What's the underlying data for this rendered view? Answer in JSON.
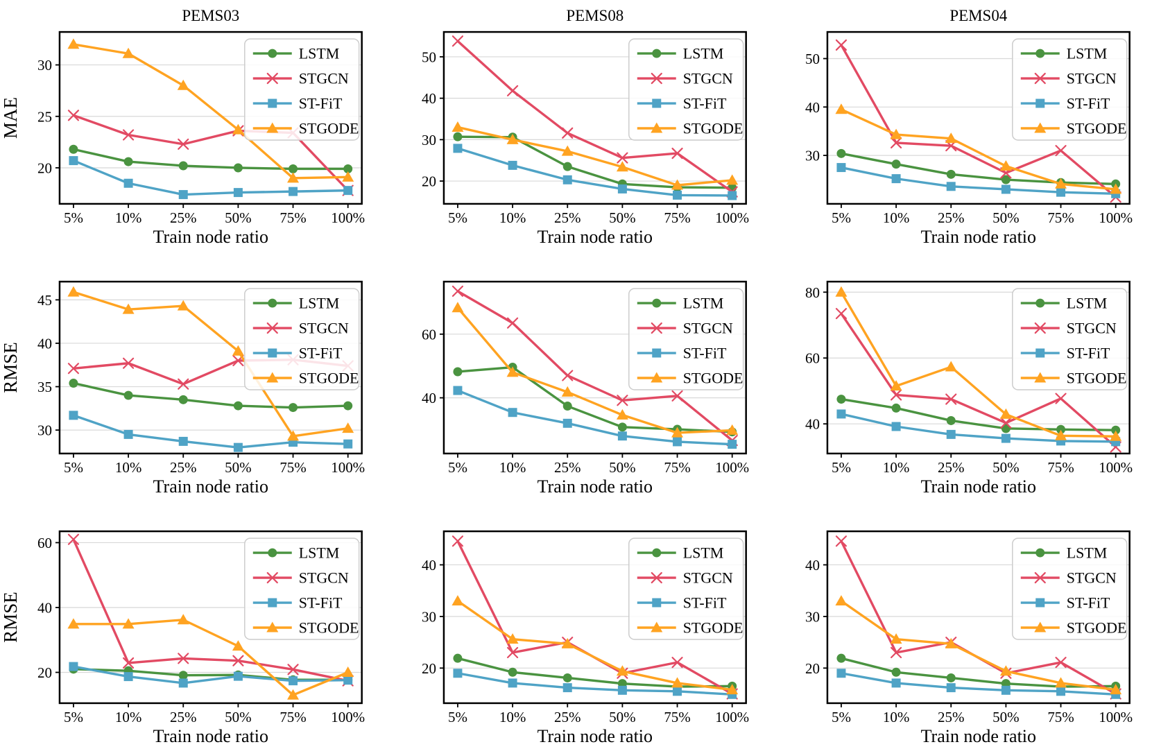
{
  "figure": {
    "background_color": "#ffffff",
    "grid_color": "#d8d8d8",
    "axis_color": "#000000",
    "legend_labels": [
      "LSTM",
      "STGCN",
      "ST-FiT",
      "STGODE"
    ],
    "legend_position": "upper right",
    "series_colors": {
      "LSTM": "#4a9340",
      "STGCN": "#e24a63",
      "ST-FiT": "#4fa3c6",
      "STGODE": "#ffa321"
    },
    "series_markers": {
      "LSTM": "circle",
      "STGCN": "x",
      "ST-FiT": "square",
      "STGODE": "triangle"
    }
  },
  "chart_data": [
    {
      "type": "line",
      "title": "PEMS03",
      "ylabel": "MAE",
      "xlabel": "Train node ratio",
      "categories": [
        "5%",
        "10%",
        "25%",
        "50%",
        "75%",
        "100%"
      ],
      "yticks": [
        20,
        25,
        30
      ],
      "ylim": [
        16.5,
        33.2
      ],
      "grid": true,
      "legend_position": "upper right",
      "series": [
        {
          "name": "LSTM",
          "color": "#4a9340",
          "marker": "circle",
          "values": [
            21.8,
            20.6,
            20.2,
            20.0,
            19.9,
            19.9
          ]
        },
        {
          "name": "STGCN",
          "color": "#e24a63",
          "marker": "x",
          "values": [
            25.1,
            23.2,
            22.3,
            23.6,
            23.4,
            17.8
          ]
        },
        {
          "name": "ST-FiT",
          "color": "#4fa3c6",
          "marker": "square",
          "values": [
            20.7,
            18.5,
            17.4,
            17.6,
            17.7,
            17.8
          ]
        },
        {
          "name": "STGODE",
          "color": "#ffa321",
          "marker": "triangle",
          "values": [
            32.0,
            31.1,
            28.0,
            23.7,
            19.0,
            19.1
          ]
        }
      ]
    },
    {
      "type": "line",
      "title": "PEMS08",
      "ylabel": "",
      "xlabel": "Train node ratio",
      "categories": [
        "5%",
        "10%",
        "25%",
        "50%",
        "75%",
        "100%"
      ],
      "yticks": [
        20,
        30,
        40,
        50
      ],
      "ylim": [
        14.5,
        56.0
      ],
      "grid": true,
      "legend_position": "upper right",
      "series": [
        {
          "name": "LSTM",
          "color": "#4a9340",
          "marker": "circle",
          "values": [
            30.7,
            30.6,
            23.5,
            19.3,
            18.5,
            18.4
          ]
        },
        {
          "name": "STGCN",
          "color": "#e24a63",
          "marker": "x",
          "values": [
            53.8,
            41.8,
            31.6,
            25.6,
            26.7,
            17.4
          ]
        },
        {
          "name": "ST-FiT",
          "color": "#4fa3c6",
          "marker": "square",
          "values": [
            27.9,
            23.8,
            20.3,
            18.1,
            16.6,
            16.5
          ]
        },
        {
          "name": "STGODE",
          "color": "#ffa321",
          "marker": "triangle",
          "values": [
            33.0,
            30.0,
            27.2,
            23.4,
            19.0,
            20.2
          ]
        }
      ]
    },
    {
      "type": "line",
      "title": "PEMS04",
      "ylabel": "",
      "xlabel": "Train node ratio",
      "categories": [
        "5%",
        "10%",
        "25%",
        "50%",
        "75%",
        "100%"
      ],
      "yticks": [
        30,
        40,
        50
      ],
      "ylim": [
        20.0,
        55.5
      ],
      "grid": true,
      "legend_position": "upper right",
      "series": [
        {
          "name": "LSTM",
          "color": "#4a9340",
          "marker": "circle",
          "values": [
            30.4,
            28.2,
            26.1,
            25.0,
            24.4,
            24.1
          ]
        },
        {
          "name": "STGCN",
          "color": "#e24a63",
          "marker": "x",
          "values": [
            52.8,
            32.6,
            32.0,
            26.4,
            31.0,
            21.4
          ]
        },
        {
          "name": "ST-FiT",
          "color": "#4fa3c6",
          "marker": "square",
          "values": [
            27.5,
            25.2,
            23.6,
            23.0,
            22.4,
            22.1
          ]
        },
        {
          "name": "STGODE",
          "color": "#ffa321",
          "marker": "triangle",
          "values": [
            39.5,
            34.3,
            33.5,
            27.8,
            24.1,
            23.0
          ]
        }
      ]
    },
    {
      "type": "line",
      "title": "",
      "ylabel": "RMSE",
      "xlabel": "Train node ratio",
      "categories": [
        "5%",
        "10%",
        "25%",
        "50%",
        "75%",
        "100%"
      ],
      "yticks": [
        30,
        35,
        40,
        45
      ],
      "ylim": [
        27.3,
        47.1
      ],
      "grid": true,
      "legend_position": "upper right",
      "series": [
        {
          "name": "LSTM",
          "color": "#4a9340",
          "marker": "circle",
          "values": [
            35.4,
            34.0,
            33.5,
            32.8,
            32.6,
            32.8
          ]
        },
        {
          "name": "STGCN",
          "color": "#e24a63",
          "marker": "x",
          "values": [
            37.1,
            37.7,
            35.3,
            38.0,
            38.1,
            37.4
          ]
        },
        {
          "name": "ST-FiT",
          "color": "#4fa3c6",
          "marker": "square",
          "values": [
            31.7,
            29.5,
            28.7,
            28.0,
            28.6,
            28.4
          ]
        },
        {
          "name": "STGODE",
          "color": "#ffa321",
          "marker": "triangle",
          "values": [
            45.9,
            43.9,
            44.3,
            39.1,
            29.3,
            30.2
          ]
        }
      ]
    },
    {
      "type": "line",
      "title": "",
      "ylabel": "",
      "xlabel": "Train node ratio",
      "categories": [
        "5%",
        "10%",
        "25%",
        "50%",
        "75%",
        "100%"
      ],
      "yticks": [
        40,
        60
      ],
      "ylim": [
        22.5,
        76.5
      ],
      "grid": true,
      "legend_position": "upper right",
      "series": [
        {
          "name": "LSTM",
          "color": "#4a9340",
          "marker": "circle",
          "values": [
            48.2,
            49.6,
            37.4,
            30.8,
            30.1,
            29.3
          ]
        },
        {
          "name": "STGCN",
          "color": "#e24a63",
          "marker": "x",
          "values": [
            73.5,
            63.5,
            47.0,
            39.2,
            40.6,
            26.6
          ]
        },
        {
          "name": "ST-FiT",
          "color": "#4fa3c6",
          "marker": "square",
          "values": [
            42.3,
            35.4,
            32.0,
            28.0,
            26.2,
            25.4
          ]
        },
        {
          "name": "STGODE",
          "color": "#ffa321",
          "marker": "triangle",
          "values": [
            68.3,
            48.0,
            41.8,
            34.6,
            29.0,
            29.8
          ]
        }
      ]
    },
    {
      "type": "line",
      "title": "",
      "ylabel": "",
      "xlabel": "Train node ratio",
      "categories": [
        "5%",
        "10%",
        "25%",
        "50%",
        "75%",
        "100%"
      ],
      "yticks": [
        40,
        60,
        80
      ],
      "ylim": [
        31.0,
        83.2
      ],
      "grid": true,
      "legend_position": "upper right",
      "series": [
        {
          "name": "LSTM",
          "color": "#4a9340",
          "marker": "circle",
          "values": [
            47.5,
            44.8,
            41.0,
            38.6,
            38.3,
            38.1
          ]
        },
        {
          "name": "STGCN",
          "color": "#e24a63",
          "marker": "x",
          "values": [
            73.5,
            48.8,
            47.5,
            40.3,
            47.7,
            33.0
          ]
        },
        {
          "name": "ST-FiT",
          "color": "#4fa3c6",
          "marker": "square",
          "values": [
            43.0,
            39.2,
            36.8,
            35.6,
            34.8,
            34.6
          ]
        },
        {
          "name": "STGODE",
          "color": "#ffa321",
          "marker": "triangle",
          "values": [
            80.0,
            51.5,
            57.3,
            42.9,
            36.4,
            36.2
          ]
        }
      ]
    },
    {
      "type": "line",
      "title": "",
      "ylabel": "RMSE",
      "xlabel": "Train node ratio",
      "categories": [
        "5%",
        "10%",
        "25%",
        "50%",
        "75%",
        "100%"
      ],
      "yticks": [
        20,
        40,
        60
      ],
      "ylim": [
        10.5,
        63.5
      ],
      "grid": true,
      "legend_position": "upper right",
      "series": [
        {
          "name": "LSTM",
          "color": "#4a9340",
          "marker": "circle",
          "values": [
            21.0,
            20.5,
            19.1,
            19.2,
            17.7,
            17.7
          ]
        },
        {
          "name": "STGCN",
          "color": "#e24a63",
          "marker": "x",
          "values": [
            61.0,
            22.9,
            24.3,
            23.6,
            20.9,
            17.4
          ]
        },
        {
          "name": "ST-FiT",
          "color": "#4fa3c6",
          "marker": "square",
          "values": [
            21.8,
            18.7,
            16.7,
            18.8,
            17.4,
            17.6
          ]
        },
        {
          "name": "STGODE",
          "color": "#ffa321",
          "marker": "triangle",
          "values": [
            34.9,
            34.9,
            36.2,
            28.1,
            13.0,
            20.0
          ]
        }
      ]
    },
    {
      "type": "line",
      "title": "",
      "ylabel": "",
      "xlabel": "Train node ratio",
      "categories": [
        "5%",
        "10%",
        "25%",
        "50%",
        "75%",
        "100%"
      ],
      "yticks": [
        20,
        30,
        40
      ],
      "ylim": [
        13.2,
        46.5
      ],
      "grid": true,
      "legend_position": "upper right",
      "series": [
        {
          "name": "LSTM",
          "color": "#4a9340",
          "marker": "circle",
          "values": [
            21.9,
            19.2,
            18.1,
            17.0,
            16.4,
            16.5
          ]
        },
        {
          "name": "STGCN",
          "color": "#e24a63",
          "marker": "x",
          "values": [
            44.6,
            23.0,
            25.0,
            19.0,
            21.1,
            15.0
          ]
        },
        {
          "name": "ST-FiT",
          "color": "#4fa3c6",
          "marker": "square",
          "values": [
            19.0,
            17.1,
            16.2,
            15.7,
            15.5,
            14.9
          ]
        },
        {
          "name": "STGODE",
          "color": "#ffa321",
          "marker": "triangle",
          "values": [
            33.0,
            25.6,
            24.7,
            19.4,
            17.1,
            15.8
          ]
        }
      ]
    },
    {
      "type": "line",
      "title": "",
      "ylabel": "",
      "xlabel": "Train node ratio",
      "categories": [
        "5%",
        "10%",
        "25%",
        "50%",
        "75%",
        "100%"
      ],
      "yticks": [
        20,
        30,
        40
      ],
      "ylim": [
        13.2,
        46.5
      ],
      "grid": true,
      "legend_position": "upper right",
      "series": [
        {
          "name": "LSTM",
          "color": "#4a9340",
          "marker": "circle",
          "values": [
            21.9,
            19.2,
            18.1,
            17.0,
            16.4,
            16.5
          ]
        },
        {
          "name": "STGCN",
          "color": "#e24a63",
          "marker": "x",
          "values": [
            44.6,
            23.0,
            25.0,
            19.0,
            21.1,
            15.0
          ]
        },
        {
          "name": "ST-FiT",
          "color": "#4fa3c6",
          "marker": "square",
          "values": [
            19.0,
            17.1,
            16.2,
            15.7,
            15.5,
            14.9
          ]
        },
        {
          "name": "STGODE",
          "color": "#ffa321",
          "marker": "triangle",
          "values": [
            33.0,
            25.6,
            24.7,
            19.4,
            17.1,
            15.8
          ]
        }
      ]
    }
  ]
}
